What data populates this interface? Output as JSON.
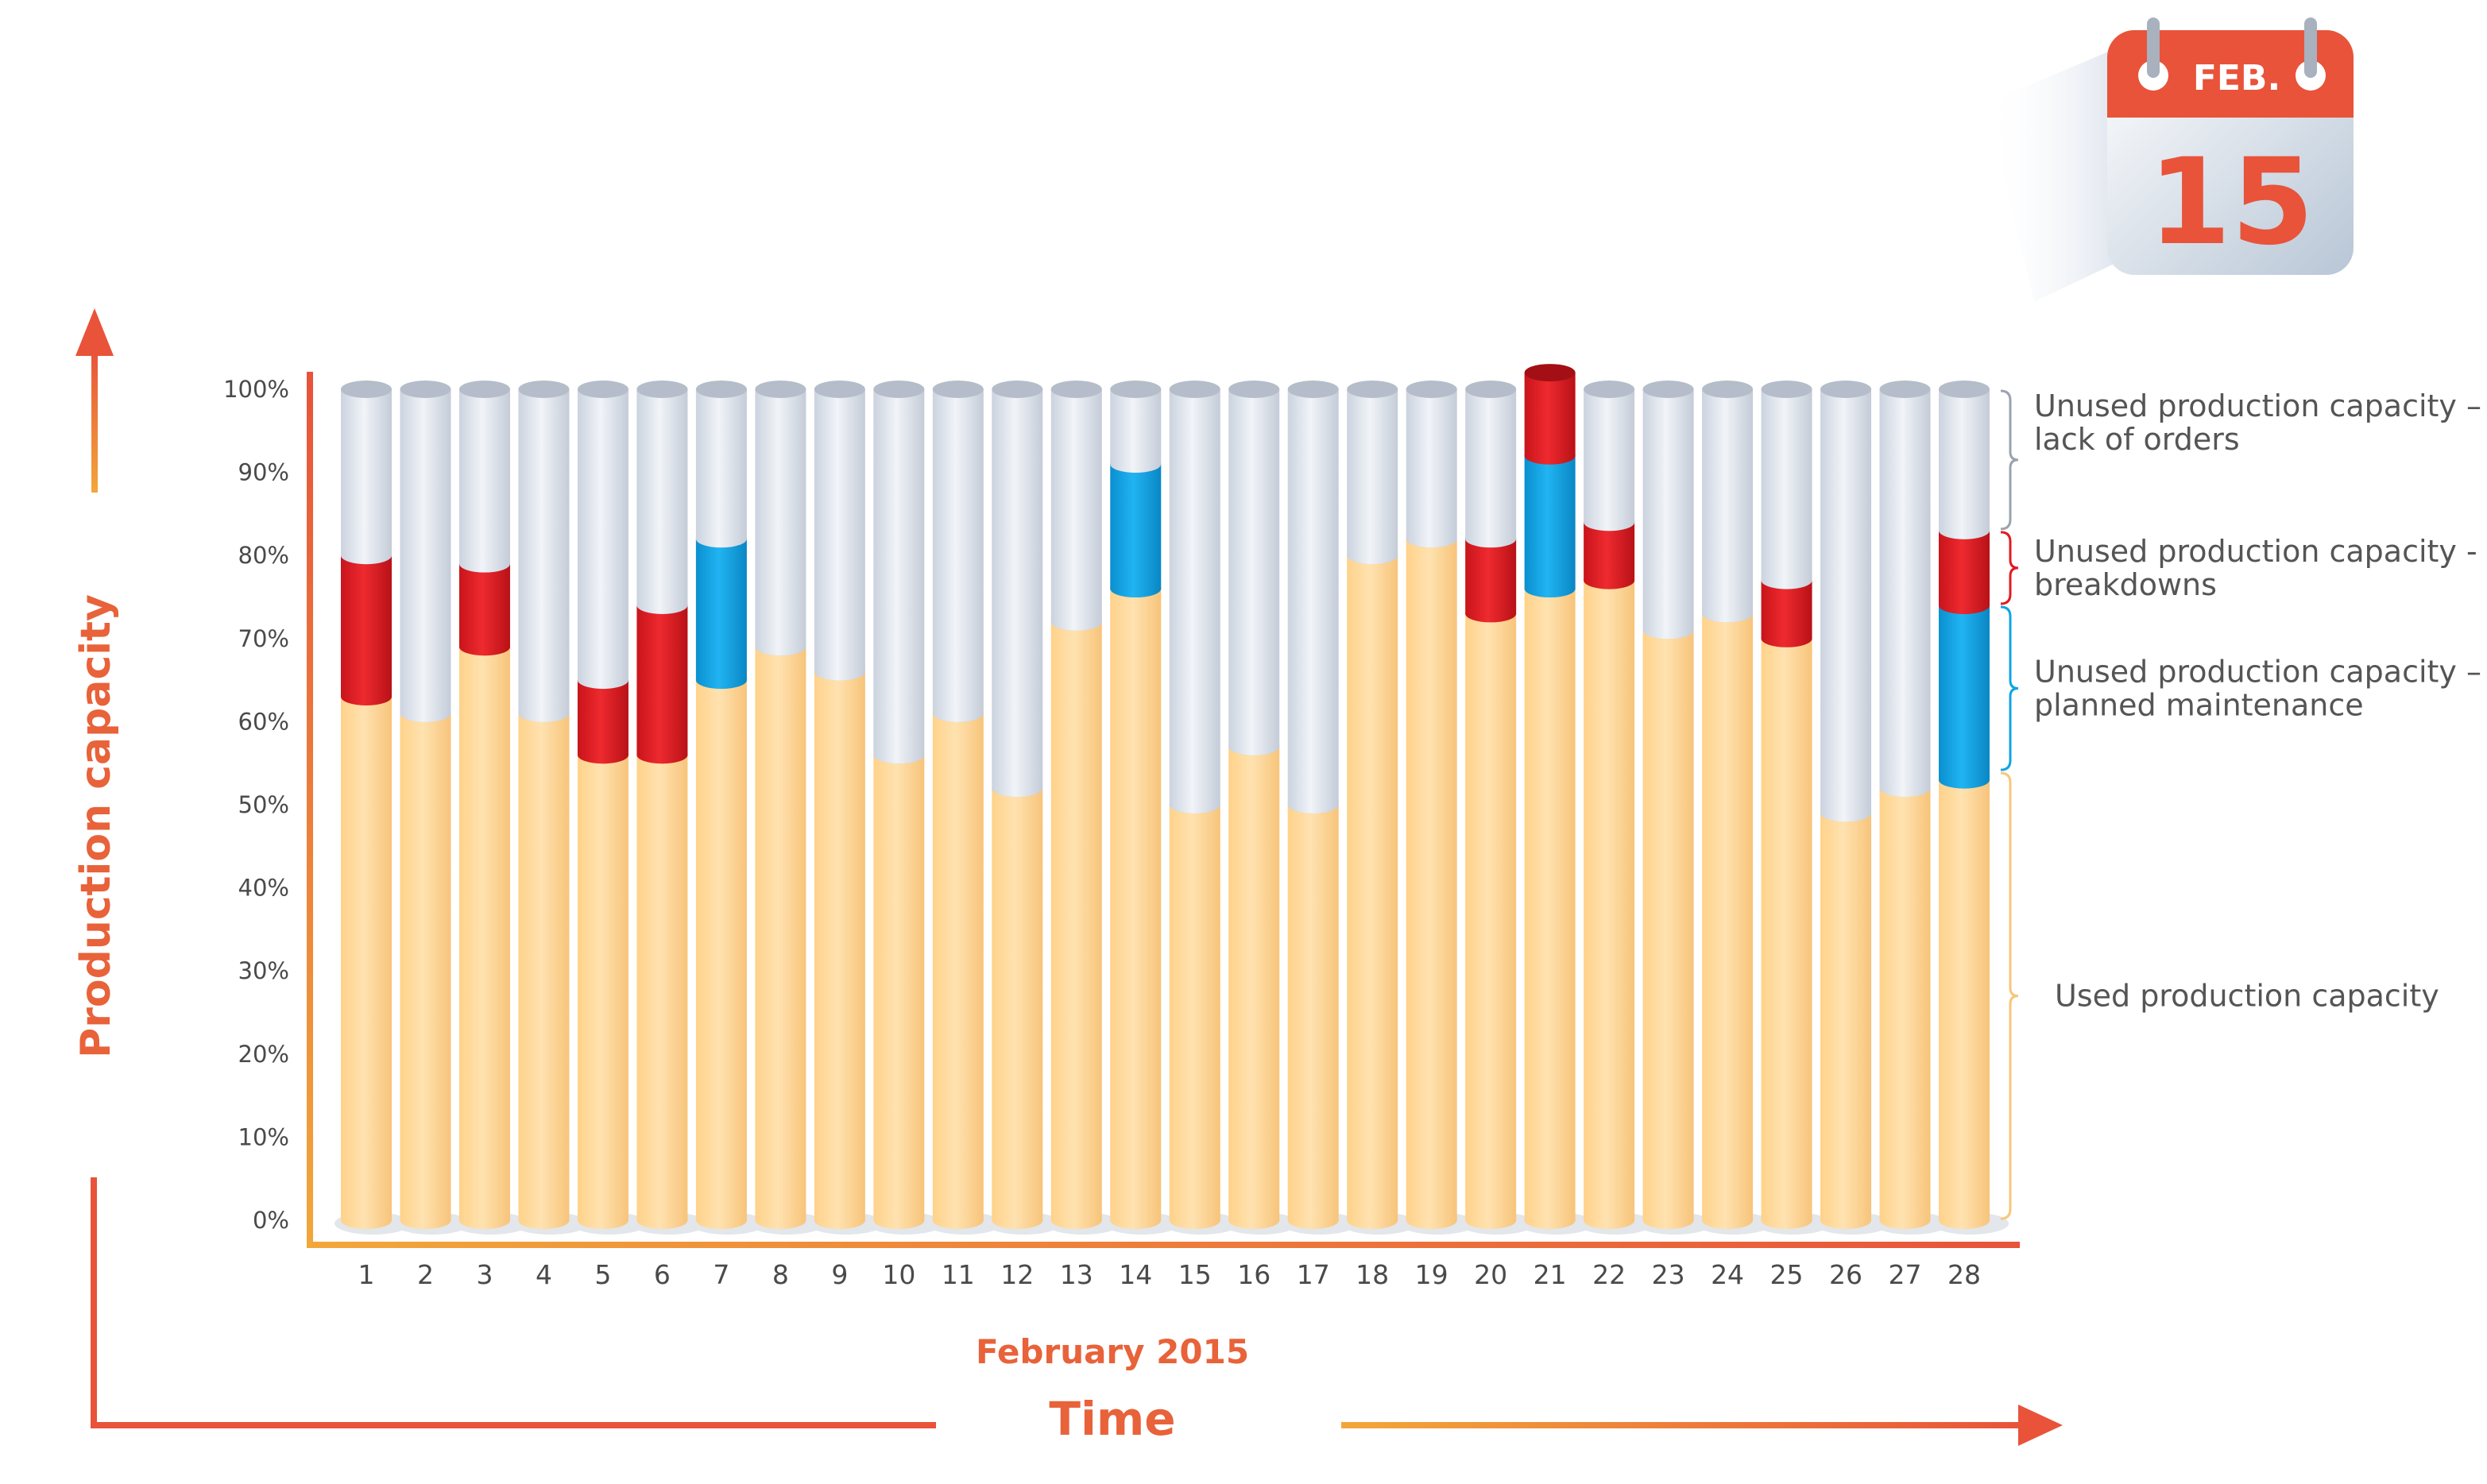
{
  "calendar": {
    "month": "FEB.",
    "day": "15"
  },
  "chart_data": {
    "type": "bar",
    "stacked": true,
    "subtitle": "February 2015",
    "xlabel": "Time",
    "ylabel": "Production capacity",
    "ylim": [
      0,
      100
    ],
    "yticks": [
      "0%",
      "10%",
      "20%",
      "30%",
      "40%",
      "50%",
      "60%",
      "70%",
      "80%",
      "90%",
      "100%"
    ],
    "categories": [
      "1",
      "2",
      "3",
      "4",
      "5",
      "6",
      "7",
      "8",
      "9",
      "10",
      "11",
      "12",
      "13",
      "14",
      "15",
      "16",
      "17",
      "18",
      "19",
      "20",
      "21",
      "22",
      "23",
      "24",
      "25",
      "26",
      "27",
      "28"
    ],
    "series": [
      {
        "name": "Used production capacity",
        "color": "#ffd89a",
        "values": [
          63,
          61,
          69,
          61,
          56,
          56,
          65,
          69,
          66,
          56,
          61,
          52,
          72,
          76,
          50,
          57,
          50,
          80,
          82,
          73,
          76,
          77,
          71,
          73,
          70,
          49,
          52,
          53
        ]
      },
      {
        "name": "Unused production capacity – planned maintenance",
        "color": "#0ea5e6",
        "values": [
          0,
          0,
          0,
          0,
          0,
          0,
          17,
          0,
          0,
          0,
          0,
          0,
          0,
          15,
          0,
          0,
          0,
          0,
          0,
          0,
          16,
          0,
          0,
          0,
          0,
          0,
          0,
          21
        ]
      },
      {
        "name": "Unused production capacity - breakdowns",
        "color": "#e11b22",
        "values": [
          17,
          0,
          10,
          0,
          9,
          18,
          0,
          0,
          0,
          0,
          0,
          0,
          0,
          0,
          0,
          0,
          0,
          0,
          0,
          9,
          10,
          7,
          0,
          0,
          7,
          0,
          0,
          9
        ]
      },
      {
        "name": "Unused production capacity – lack of orders",
        "color": "#d7dee8",
        "values": [
          20,
          39,
          21,
          39,
          35,
          26,
          18,
          31,
          34,
          44,
          39,
          48,
          28,
          9,
          50,
          43,
          50,
          20,
          18,
          18,
          0,
          16,
          29,
          27,
          23,
          51,
          48,
          17
        ]
      }
    ],
    "legend": [
      {
        "lines": [
          "Unused production capacity –",
          "lack of orders"
        ]
      },
      {
        "lines": [
          "Unused production capacity -",
          "breakdowns"
        ]
      },
      {
        "lines": [
          "Unused production capacity –",
          "planned maintenance"
        ]
      },
      {
        "lines": [
          "Used production capacity"
        ]
      }
    ]
  }
}
